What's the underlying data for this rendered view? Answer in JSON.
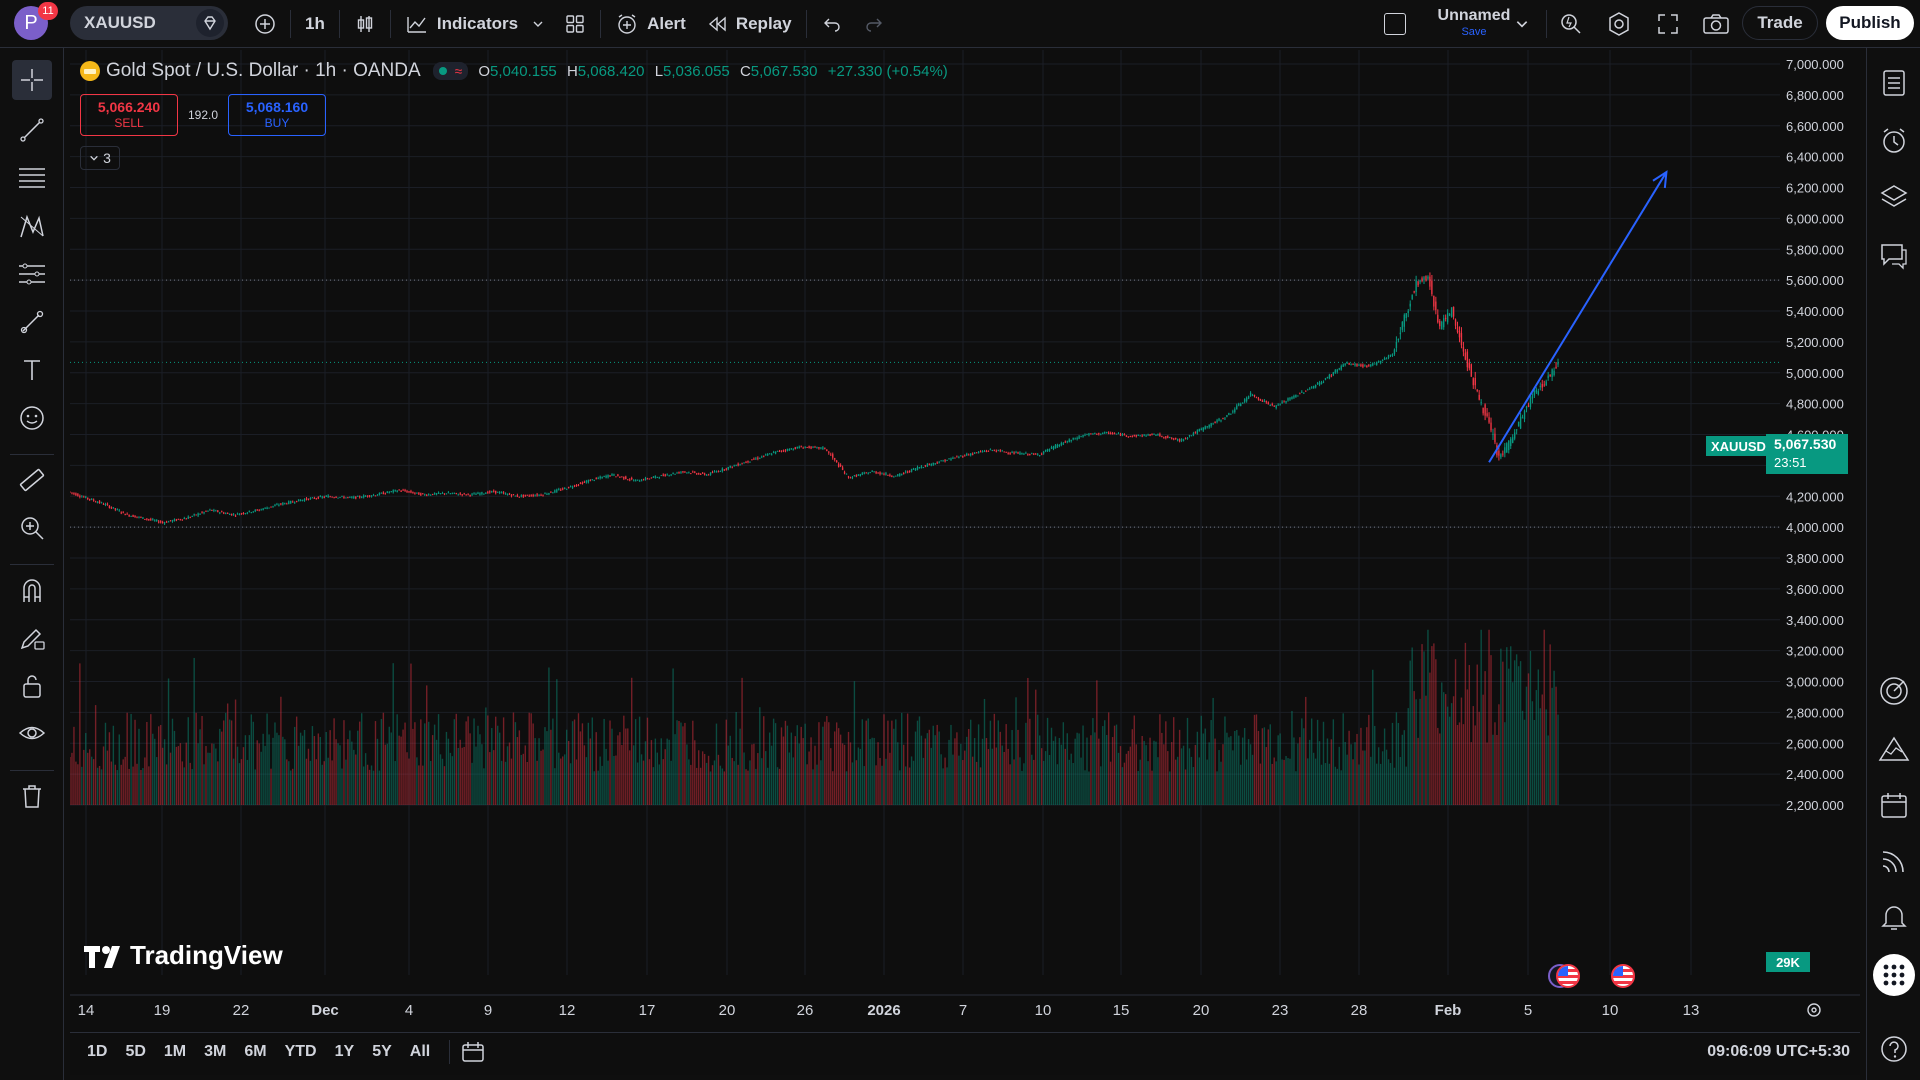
{
  "topbar": {
    "avatar_letter": "P",
    "notification_count": "11",
    "symbol": "XAUUSD",
    "interval": "1h",
    "indicators_label": "Indicators",
    "alert_label": "Alert",
    "replay_label": "Replay",
    "layout_name": "Unnamed",
    "layout_save": "Save",
    "trade_label": "Trade",
    "publish_label": "Publish"
  },
  "legend": {
    "title": "Gold Spot / U.S. Dollar · 1h · OANDA",
    "o_label": "O",
    "o_value": "5,040.155",
    "h_label": "H",
    "h_value": "5,068.420",
    "l_label": "L",
    "l_value": "5,036.055",
    "c_label": "C",
    "c_value": "5,067.530",
    "change": "+27.330 (+0.54%)",
    "sell_price": "5,066.240",
    "sell_label": "SELL",
    "spread": "192.0",
    "buy_price": "5,068.160",
    "buy_label": "BUY",
    "collapsed_count": "3"
  },
  "price_badge": {
    "symbol": "XAUUSD",
    "price": "5,067.530",
    "countdown": "23:51"
  },
  "volume_badge": "29K",
  "watermark": "TradingView",
  "bottombar": {
    "ranges": [
      "1D",
      "5D",
      "1M",
      "3M",
      "6M",
      "YTD",
      "1Y",
      "5Y",
      "All"
    ],
    "clock": "09:06:09 UTC+5:30"
  },
  "colors": {
    "up": "#089981",
    "down": "#f23645",
    "arrow": "#2962ff",
    "background": "#0e0e0e"
  },
  "chart_data": {
    "type": "candlestick",
    "symbol": "XAUUSD",
    "interval": "1h",
    "y_axis_ticks": [
      "7,000.000",
      "6,800.000",
      "6,600.000",
      "6,400.000",
      "6,200.000",
      "6,000.000",
      "5,800.000",
      "5,600.000",
      "5,400.000",
      "5,200.000",
      "5,000.000",
      "4,800.000",
      "4,600.000",
      "4,400.000",
      "4,200.000",
      "4,000.000",
      "3,800.000",
      "3,600.000",
      "3,400.000",
      "3,200.000",
      "3,000.000",
      "2,800.000",
      "2,600.000",
      "2,400.000",
      "2,200.000"
    ],
    "ylim": [
      2200,
      7000
    ],
    "x_axis_ticks": [
      "14",
      "19",
      "22",
      "Dec",
      "4",
      "9",
      "12",
      "17",
      "20",
      "26",
      "2026",
      "7",
      "10",
      "15",
      "20",
      "23",
      "28",
      "Feb",
      "5",
      "10",
      "13"
    ],
    "horizontal_lines": [
      5600,
      4000
    ],
    "path": [
      [
        0,
        4230
      ],
      [
        3,
        4150
      ],
      [
        5,
        4080
      ],
      [
        8,
        4030
      ],
      [
        10,
        4060
      ],
      [
        12,
        4110
      ],
      [
        14,
        4080
      ],
      [
        16,
        4110
      ],
      [
        18,
        4150
      ],
      [
        20,
        4180
      ],
      [
        22,
        4200
      ],
      [
        24,
        4190
      ],
      [
        26,
        4210
      ],
      [
        28,
        4240
      ],
      [
        30,
        4210
      ],
      [
        32,
        4220
      ],
      [
        34,
        4210
      ],
      [
        36,
        4230
      ],
      [
        38,
        4200
      ],
      [
        40,
        4210
      ],
      [
        42,
        4250
      ],
      [
        44,
        4300
      ],
      [
        46,
        4340
      ],
      [
        48,
        4300
      ],
      [
        50,
        4330
      ],
      [
        52,
        4360
      ],
      [
        54,
        4340
      ],
      [
        56,
        4390
      ],
      [
        58,
        4440
      ],
      [
        60,
        4490
      ],
      [
        62,
        4520
      ],
      [
        64,
        4510
      ],
      [
        66,
        4320
      ],
      [
        68,
        4360
      ],
      [
        70,
        4330
      ],
      [
        72,
        4390
      ],
      [
        74,
        4430
      ],
      [
        76,
        4470
      ],
      [
        78,
        4500
      ],
      [
        80,
        4480
      ],
      [
        82,
        4470
      ],
      [
        84,
        4540
      ],
      [
        86,
        4600
      ],
      [
        88,
        4610
      ],
      [
        90,
        4590
      ],
      [
        92,
        4600
      ],
      [
        94,
        4560
      ],
      [
        96,
        4640
      ],
      [
        98,
        4720
      ],
      [
        100,
        4860
      ],
      [
        102,
        4780
      ],
      [
        104,
        4860
      ],
      [
        106,
        4940
      ],
      [
        108,
        5060
      ],
      [
        110,
        5040
      ],
      [
        112,
        5120
      ],
      [
        114,
        5580
      ],
      [
        115,
        5620
      ],
      [
        116,
        5300
      ],
      [
        117,
        5400
      ],
      [
        118,
        5150
      ],
      [
        119,
        4900
      ],
      [
        120,
        4700
      ],
      [
        121,
        4450
      ],
      [
        122,
        4560
      ],
      [
        123,
        4720
      ],
      [
        124,
        4870
      ],
      [
        125,
        4950
      ],
      [
        126,
        5067
      ]
    ],
    "arrow_annotation": {
      "from": [
        120,
        4420
      ],
      "to": [
        135,
        6300
      ]
    },
    "volume_ylim": [
      0,
      3400
    ],
    "volume_badge": "29K"
  }
}
